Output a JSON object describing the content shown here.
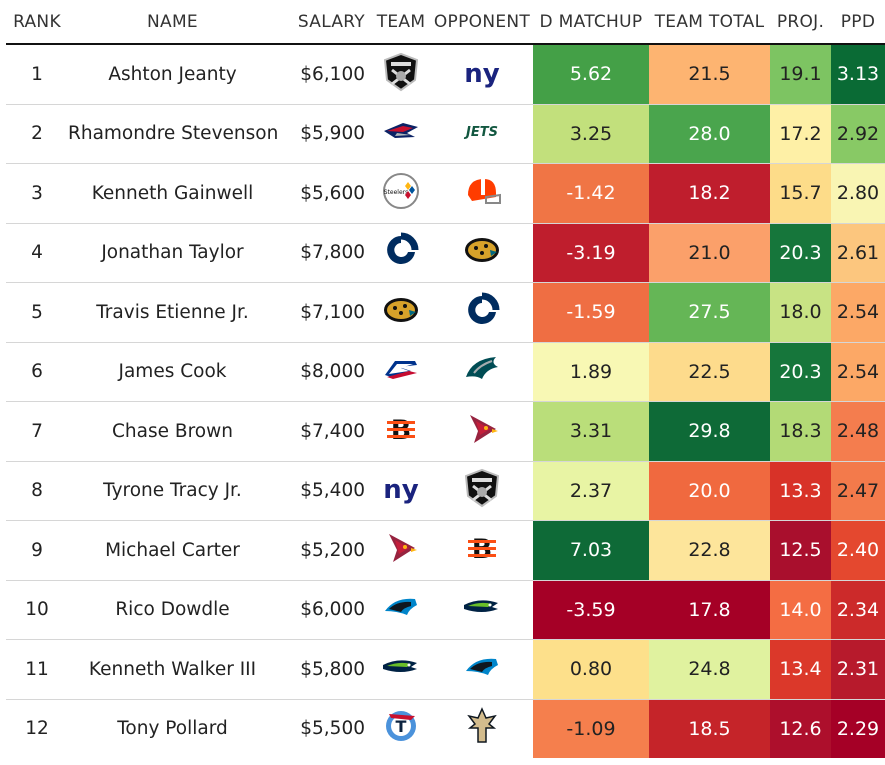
{
  "headers": {
    "rank": "RANK",
    "name": "NAME",
    "salary": "SALARY",
    "team": "TEAM",
    "opponent": "OPPONENT",
    "d_matchup": "D MATCHUP",
    "team_total": "TEAM TOTAL",
    "proj": "PROJ.",
    "ppd": "PPD"
  },
  "rows": [
    {
      "rank": "1",
      "name": "Ashton Jeanty",
      "salary": "$6,100",
      "team": "raiders-logo",
      "opponent": "giants-logo",
      "d_matchup": "5.62",
      "team_total": "21.5",
      "proj": "19.1",
      "ppd": "3.13",
      "colors": {
        "d_matchup": "#44a047",
        "team_total": "#fdb471",
        "proj": "#7dc462",
        "ppd": "#0a6b35"
      }
    },
    {
      "rank": "2",
      "name": "Rhamondre Stevenson",
      "salary": "$5,900",
      "team": "patriots-logo",
      "opponent": "jets-logo",
      "d_matchup": "3.25",
      "team_total": "28.0",
      "proj": "17.2",
      "ppd": "2.92",
      "colors": {
        "d_matchup": "#c2e07c",
        "team_total": "#4aa54d",
        "proj": "#fef0a6",
        "ppd": "#88c965"
      }
    },
    {
      "rank": "3",
      "name": "Kenneth Gainwell",
      "salary": "$5,600",
      "team": "steelers-logo",
      "opponent": "browns-logo",
      "d_matchup": "-1.42",
      "team_total": "18.2",
      "proj": "15.7",
      "ppd": "2.80",
      "colors": {
        "d_matchup": "#f07545",
        "team_total": "#bf1e2d",
        "proj": "#fddc89",
        "ppd": "#f9f5b3"
      }
    },
    {
      "rank": "4",
      "name": "Jonathan Taylor",
      "salary": "$7,800",
      "team": "colts-logo",
      "opponent": "jaguars-logo",
      "d_matchup": "-3.19",
      "team_total": "21.0",
      "proj": "20.3",
      "ppd": "2.61",
      "colors": {
        "d_matchup": "#bf1e2d",
        "team_total": "#fba06a",
        "proj": "#16763b",
        "ppd": "#fcc67e"
      }
    },
    {
      "rank": "5",
      "name": "Travis Etienne Jr.",
      "salary": "$7,100",
      "team": "jaguars-logo",
      "opponent": "colts-logo",
      "d_matchup": "-1.59",
      "team_total": "27.5",
      "proj": "18.0",
      "ppd": "2.54",
      "colors": {
        "d_matchup": "#ef6e43",
        "team_total": "#65b656",
        "proj": "#c8e384",
        "ppd": "#fca866"
      }
    },
    {
      "rank": "6",
      "name": "James Cook",
      "salary": "$8,000",
      "team": "bills-logo",
      "opponent": "eagles-logo",
      "d_matchup": "1.89",
      "team_total": "22.5",
      "proj": "20.3",
      "ppd": "2.54",
      "colors": {
        "d_matchup": "#f8f8b4",
        "team_total": "#fddb8c",
        "proj": "#16763b",
        "ppd": "#fca866"
      }
    },
    {
      "rank": "7",
      "name": "Chase Brown",
      "salary": "$7,400",
      "team": "bengals-logo",
      "opponent": "cardinals-logo",
      "d_matchup": "3.31",
      "team_total": "29.8",
      "proj": "18.3",
      "ppd": "2.48",
      "colors": {
        "d_matchup": "#bade7a",
        "team_total": "#0e6a37",
        "proj": "#b3da76",
        "ppd": "#f47d4e"
      }
    },
    {
      "rank": "8",
      "name": "Tyrone Tracy Jr.",
      "salary": "$5,400",
      "team": "giants-logo",
      "opponent": "raiders-logo",
      "d_matchup": "2.37",
      "team_total": "20.0",
      "proj": "13.3",
      "ppd": "2.47",
      "colors": {
        "d_matchup": "#e8f4a4",
        "team_total": "#f0693f",
        "proj": "#d83228",
        "ppd": "#f37a4b"
      }
    },
    {
      "rank": "9",
      "name": "Michael Carter",
      "salary": "$5,200",
      "team": "cardinals-logo",
      "opponent": "bengals-logo",
      "d_matchup": "7.03",
      "team_total": "22.8",
      "proj": "12.5",
      "ppd": "2.40",
      "colors": {
        "d_matchup": "#0e6a37",
        "team_total": "#fde59b",
        "proj": "#a90f2d",
        "ppd": "#e4482f"
      }
    },
    {
      "rank": "10",
      "name": "Rico Dowdle",
      "salary": "$6,000",
      "team": "panthers-logo",
      "opponent": "seahawks-logo",
      "d_matchup": "-3.59",
      "team_total": "17.8",
      "proj": "14.0",
      "ppd": "2.34",
      "colors": {
        "d_matchup": "#a50026",
        "team_total": "#a50026",
        "proj": "#f46d43",
        "ppd": "#cc2a2a"
      }
    },
    {
      "rank": "11",
      "name": "Kenneth Walker III",
      "salary": "$5,800",
      "team": "seahawks-logo",
      "opponent": "panthers-logo",
      "d_matchup": "0.80",
      "team_total": "24.8",
      "proj": "13.4",
      "ppd": "2.31",
      "colors": {
        "d_matchup": "#fde08b",
        "team_total": "#e0f29f",
        "proj": "#db382a",
        "ppd": "#b71a2c"
      }
    },
    {
      "rank": "12",
      "name": "Tony Pollard",
      "salary": "$5,500",
      "team": "titans-logo",
      "opponent": "saints-logo",
      "d_matchup": "-1.09",
      "team_total": "18.5",
      "proj": "12.6",
      "ppd": "2.29",
      "colors": {
        "d_matchup": "#f57f4d",
        "team_total": "#c52429",
        "proj": "#ad0f2c",
        "ppd": "#a50026"
      }
    }
  ]
}
